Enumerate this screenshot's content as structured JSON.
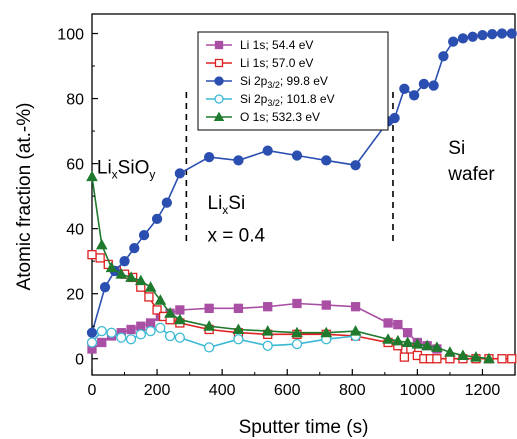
{
  "chart_data": {
    "type": "line",
    "xlabel": "Sputter time (s)",
    "ylabel": "Atomic fraction (at.-%)",
    "xlim": [
      0,
      1300
    ],
    "ylim": [
      -5,
      106
    ],
    "xticks": [
      0,
      200,
      400,
      600,
      800,
      1000,
      1200
    ],
    "yticks": [
      0,
      20,
      40,
      60,
      80,
      100
    ],
    "grid": false,
    "legend_position": "top-center",
    "series": [
      {
        "name": "Li 1s; 54.4 eV",
        "label_parts": [
          "Li 1s; 54.4 eV"
        ],
        "color": "#a94fa4",
        "marker": "square-filled",
        "x": [
          0,
          30,
          60,
          90,
          120,
          150,
          180,
          210,
          240,
          270,
          360,
          450,
          540,
          630,
          720,
          810,
          910,
          940,
          970,
          1000,
          1030,
          1060
        ],
        "y": [
          3,
          5,
          7,
          8,
          9,
          10,
          11,
          13,
          14,
          15,
          15.5,
          15.5,
          16,
          17,
          16.5,
          16,
          11,
          10.5,
          8,
          5,
          4,
          3
        ]
      },
      {
        "name": "Li 1s; 57.0 eV",
        "label_parts": [
          "Li 1s;  57.0 eV"
        ],
        "color": "#dd2222",
        "marker": "square-open",
        "x": [
          0,
          25,
          50,
          75,
          100,
          125,
          150,
          175,
          200,
          220,
          240,
          270,
          360,
          450,
          540,
          630,
          720,
          810,
          910,
          940,
          960,
          980,
          1000,
          1020,
          1040,
          1060,
          1100,
          1140,
          1180,
          1220,
          1260,
          1290
        ],
        "y": [
          32,
          31,
          29,
          27,
          26,
          25,
          22,
          19,
          15,
          13,
          12,
          11,
          9,
          8,
          7.5,
          7.5,
          7.5,
          7,
          5,
          4,
          0.5,
          3,
          1,
          0,
          0,
          0,
          0,
          0,
          0,
          0,
          0,
          0
        ]
      },
      {
        "name": "Si 2p3/2; 99.8 eV",
        "label_parts": [
          "Si 2p",
          "3/2",
          "; 99.8 eV"
        ],
        "color": "#2b4fb0",
        "marker": "circle-filled",
        "x": [
          0,
          40,
          70,
          100,
          130,
          160,
          200,
          230,
          270,
          360,
          450,
          540,
          630,
          720,
          810,
          910,
          930,
          960,
          990,
          1020,
          1050,
          1080,
          1110,
          1140,
          1170,
          1200,
          1230,
          1260,
          1290
        ],
        "y": [
          8,
          22,
          27,
          30,
          34,
          38,
          43,
          48,
          57,
          62,
          61,
          64,
          62.5,
          61,
          59.5,
          73,
          74,
          83,
          81,
          84.5,
          84,
          93,
          97.5,
          98.5,
          99,
          99.5,
          99.8,
          100,
          100
        ]
      },
      {
        "name": "Si 2p3/2; 101.8 eV",
        "label_parts": [
          "Si 2p",
          "3/2",
          "; 101.8 eV"
        ],
        "color": "#3bb8d4",
        "marker": "circle-open",
        "x": [
          0,
          30,
          60,
          90,
          120,
          150,
          180,
          210,
          240,
          270,
          360,
          450,
          540,
          630,
          720,
          810
        ],
        "y": [
          5,
          8.5,
          8,
          6.5,
          6,
          7.5,
          8.5,
          9.5,
          7,
          6.5,
          3.5,
          6,
          4,
          4.5,
          6,
          7
        ]
      },
      {
        "name": "O 1s; 532.3 eV",
        "label_parts": [
          "O 1s; 532.3 eV"
        ],
        "color": "#1f7a2e",
        "marker": "triangle-filled",
        "x": [
          0,
          30,
          60,
          90,
          120,
          150,
          180,
          210,
          240,
          270,
          360,
          450,
          540,
          630,
          720,
          810,
          910,
          940,
          970,
          1000,
          1030,
          1060,
          1100,
          1140,
          1180,
          1220
        ],
        "y": [
          56,
          35,
          28,
          26,
          25,
          24,
          22,
          18,
          14,
          12,
          10,
          9,
          8.5,
          8,
          8,
          8.5,
          6,
          5.5,
          5,
          4.5,
          4,
          3.5,
          2,
          1,
          0.5,
          0
        ]
      }
    ],
    "annotations": [
      {
        "parts": [
          "Li",
          "x",
          "SiO",
          "y"
        ],
        "x": 15,
        "y": 57
      },
      {
        "parts": [
          "Li",
          "x",
          "Si"
        ],
        "x": 355,
        "y": 46
      },
      {
        "parts": [
          "x = 0.4"
        ],
        "x": 355,
        "y": 36
      },
      {
        "parts": [
          "Si"
        ],
        "x": 1095,
        "y": 63
      },
      {
        "parts": [
          "wafer"
        ],
        "x": 1095,
        "y": 55
      }
    ],
    "dividers": [
      {
        "x": 290,
        "y_range": [
          35,
          82
        ]
      },
      {
        "x": 925,
        "y_range": [
          35,
          82
        ]
      }
    ]
  }
}
